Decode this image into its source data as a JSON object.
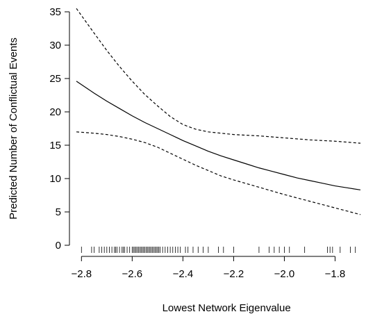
{
  "chart_data": {
    "type": "line",
    "xlabel": "Lowest Network Eigenvalue",
    "ylabel": "Predicted Number of Conflictual Events",
    "xlim": [
      -2.82,
      -1.7
    ],
    "ylim": [
      0,
      35
    ],
    "x_ticks": [
      -2.8,
      -2.6,
      -2.4,
      -2.2,
      -2.0,
      -1.8
    ],
    "x_tick_labels": [
      "−2.8",
      "−2.6",
      "−2.4",
      "−2.2",
      "−2.0",
      "−1.8"
    ],
    "y_ticks": [
      0,
      5,
      10,
      15,
      20,
      25,
      30,
      35
    ],
    "y_tick_labels": [
      "0",
      "5",
      "10",
      "15",
      "20",
      "25",
      "30",
      "35"
    ],
    "grid": false,
    "series": [
      {
        "style": "solid",
        "x": [
          -2.82,
          -2.75,
          -2.7,
          -2.65,
          -2.6,
          -2.55,
          -2.5,
          -2.45,
          -2.4,
          -2.35,
          -2.3,
          -2.25,
          -2.2,
          -2.15,
          -2.1,
          -2.05,
          -2.0,
          -1.95,
          -1.9,
          -1.85,
          -1.8,
          -1.75,
          -1.7
        ],
        "y": [
          24.6,
          22.8,
          21.6,
          20.5,
          19.4,
          18.4,
          17.5,
          16.6,
          15.7,
          14.9,
          14.1,
          13.4,
          12.8,
          12.2,
          11.6,
          11.1,
          10.6,
          10.1,
          9.7,
          9.3,
          8.9,
          8.6,
          8.3
        ]
      },
      {
        "style": "dashed",
        "x": [
          -2.82,
          -2.75,
          -2.7,
          -2.65,
          -2.6,
          -2.55,
          -2.5,
          -2.45,
          -2.4,
          -2.35,
          -2.3,
          -2.25,
          -2.2,
          -2.1,
          -2.0,
          -1.9,
          -1.8,
          -1.7
        ],
        "y": [
          35.5,
          31.8,
          29.2,
          26.8,
          24.6,
          22.6,
          20.9,
          19.3,
          18.1,
          17.4,
          17.0,
          16.8,
          16.6,
          16.4,
          16.1,
          15.8,
          15.6,
          15.3
        ]
      },
      {
        "style": "dashed",
        "x": [
          -2.82,
          -2.75,
          -2.7,
          -2.65,
          -2.6,
          -2.55,
          -2.5,
          -2.45,
          -2.4,
          -2.35,
          -2.3,
          -2.25,
          -2.2,
          -2.1,
          -2.0,
          -1.9,
          -1.8,
          -1.7
        ],
        "y": [
          17.0,
          16.8,
          16.6,
          16.3,
          15.9,
          15.4,
          14.7,
          13.8,
          12.9,
          12.0,
          11.2,
          10.4,
          9.8,
          8.7,
          7.6,
          6.6,
          5.6,
          4.6
        ]
      }
    ],
    "rug": [
      -2.8,
      -2.76,
      -2.75,
      -2.73,
      -2.72,
      -2.71,
      -2.7,
      -2.69,
      -2.68,
      -2.67,
      -2.665,
      -2.66,
      -2.65,
      -2.64,
      -2.635,
      -2.63,
      -2.62,
      -2.61,
      -2.6,
      -2.595,
      -2.59,
      -2.585,
      -2.58,
      -2.575,
      -2.57,
      -2.565,
      -2.56,
      -2.555,
      -2.55,
      -2.545,
      -2.54,
      -2.535,
      -2.53,
      -2.525,
      -2.52,
      -2.515,
      -2.51,
      -2.505,
      -2.5,
      -2.495,
      -2.49,
      -2.48,
      -2.47,
      -2.46,
      -2.45,
      -2.44,
      -2.43,
      -2.42,
      -2.41,
      -2.39,
      -2.38,
      -2.36,
      -2.34,
      -2.32,
      -2.3,
      -2.26,
      -2.24,
      -2.2,
      -2.1,
      -2.06,
      -2.04,
      -2.02,
      -2.0,
      -1.98,
      -1.92,
      -1.83,
      -1.82,
      -1.81,
      -1.78,
      -1.74,
      -1.72
    ]
  }
}
